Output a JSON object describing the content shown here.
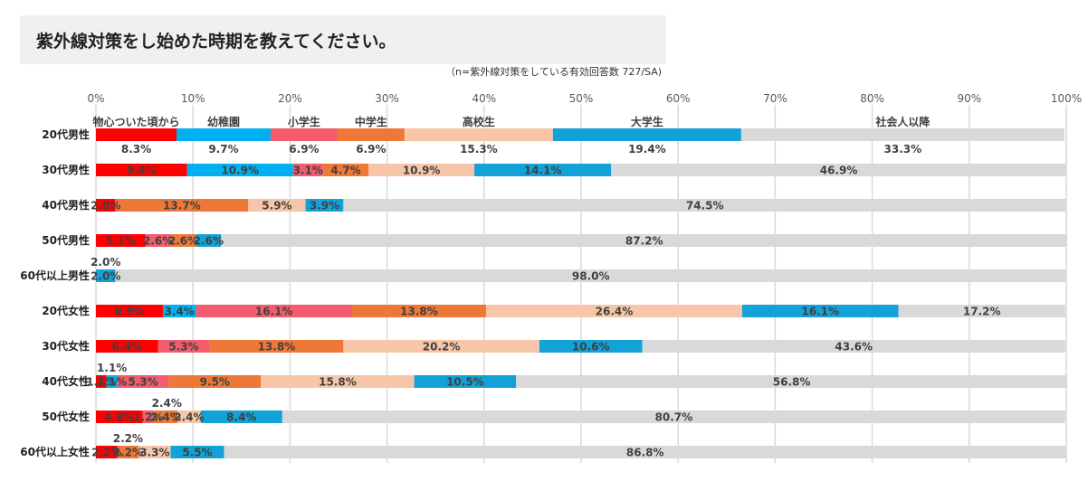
{
  "chart_data": {
    "type": "bar",
    "stacked": true,
    "orientation": "horizontal",
    "title": "紫外線対策をし始めた時期を教えてください。",
    "subtitle": "（n=紫外線対策をしている有効回答数 727/SA)",
    "xlim": [
      0,
      100
    ],
    "x_ticks": [
      "0%",
      "10%",
      "20%",
      "30%",
      "40%",
      "50%",
      "60%",
      "70%",
      "80%",
      "90%",
      "100%"
    ],
    "categories": [
      "20代男性",
      "30代男性",
      "40代男性",
      "50代男性",
      "60代以上男性",
      "20代女性",
      "30代女性",
      "40代女性",
      "50代女性",
      "60代以上女性"
    ],
    "series": [
      {
        "name": "物心ついた頃から",
        "color": "#ff0000",
        "values": [
          8.3,
          9.4,
          2.0,
          5.1,
          0,
          6.9,
          6.4,
          1.1,
          4.8,
          2.2
        ]
      },
      {
        "name": "幼稚園",
        "color": "#00b0f0",
        "values": [
          9.7,
          10.9,
          0,
          0,
          0,
          3.4,
          0,
          1.1,
          0,
          0
        ]
      },
      {
        "name": "小学生",
        "color": "#f25c6c",
        "values": [
          6.9,
          3.1,
          0,
          2.6,
          0,
          16.1,
          5.3,
          5.3,
          1.2,
          0
        ]
      },
      {
        "name": "中学生",
        "color": "#ed7838",
        "values": [
          6.9,
          4.7,
          13.7,
          2.6,
          0,
          13.8,
          13.8,
          9.5,
          2.4,
          2.2
        ]
      },
      {
        "name": "高校生",
        "color": "#f7c6a8",
        "values": [
          15.3,
          10.9,
          5.9,
          0,
          0,
          26.4,
          20.2,
          15.8,
          2.4,
          3.3
        ]
      },
      {
        "name": "大学生",
        "color": "#12a2d8",
        "values": [
          19.4,
          14.1,
          3.9,
          2.6,
          2.0,
          16.1,
          10.6,
          10.5,
          8.4,
          5.5
        ]
      },
      {
        "name": "社会人以降",
        "color": "#d9d9d9",
        "values": [
          33.3,
          46.9,
          74.5,
          87.2,
          98.0,
          17.2,
          43.6,
          56.8,
          80.7,
          86.8
        ]
      }
    ],
    "labels": [
      [
        "8.3%",
        "9.7%",
        "6.9%",
        "6.9%",
        "15.3%",
        "19.4%",
        "33.3%"
      ],
      [
        "9.4%",
        "10.9%",
        "3.1%",
        "4.7%",
        "10.9%",
        "14.1%",
        "46.9%"
      ],
      [
        "2.0%",
        "",
        "",
        "13.7%",
        "5.9%",
        "3.9%",
        "74.5%"
      ],
      [
        "5.1%",
        "",
        "2.6%",
        "2.6%",
        "",
        "2.6%",
        "87.2%"
      ],
      [
        "",
        "",
        "",
        "",
        "",
        "2.0%",
        "98.0%"
      ],
      [
        "6.9%",
        "3.4%",
        "16.1%",
        "13.8%",
        "26.4%",
        "16.1%",
        "17.2%"
      ],
      [
        "6.4%",
        "",
        "5.3%",
        "13.8%",
        "20.2%",
        "10.6%",
        "43.6%"
      ],
      [
        "1.1%",
        "1.1%",
        "5.3%",
        "9.5%",
        "15.8%",
        "10.5%",
        "56.8%"
      ],
      [
        "4.8%",
        "",
        "1.2%",
        "2.4%",
        "2.4%",
        "8.4%",
        "80.7%"
      ],
      [
        "2.2%",
        "",
        "",
        "2.2%",
        "3.3%",
        "5.5%",
        "86.8%"
      ]
    ]
  }
}
